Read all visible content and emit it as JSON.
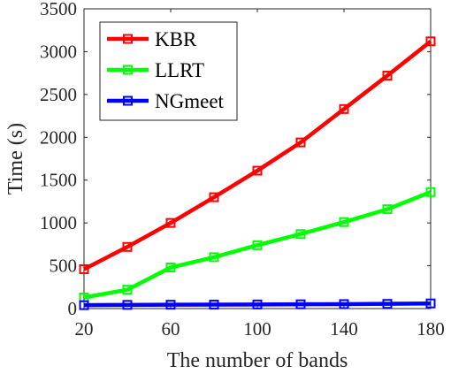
{
  "chart_data": {
    "type": "line",
    "title": "",
    "xlabel": "The number of bands",
    "ylabel": "Time (s)",
    "xlim": [
      20,
      180
    ],
    "ylim": [
      0,
      3500
    ],
    "xticks": [
      20,
      60,
      100,
      140,
      180
    ],
    "yticks": [
      0,
      500,
      1000,
      1500,
      2000,
      2500,
      3000,
      3500
    ],
    "grid": false,
    "legend_position": "top-left",
    "x": [
      20,
      40,
      60,
      80,
      100,
      120,
      140,
      160,
      180
    ],
    "series": [
      {
        "name": "KBR",
        "color": "#ff0000",
        "values": [
          460,
          720,
          1000,
          1300,
          1610,
          1940,
          2330,
          2720,
          3120
        ]
      },
      {
        "name": "LLRT",
        "color": "#00ff00",
        "values": [
          130,
          220,
          480,
          600,
          740,
          870,
          1010,
          1160,
          1360
        ]
      },
      {
        "name": "NGmeet",
        "color": "#0000ff",
        "values": [
          40,
          43,
          45,
          46,
          48,
          50,
          52,
          55,
          60
        ]
      }
    ]
  }
}
